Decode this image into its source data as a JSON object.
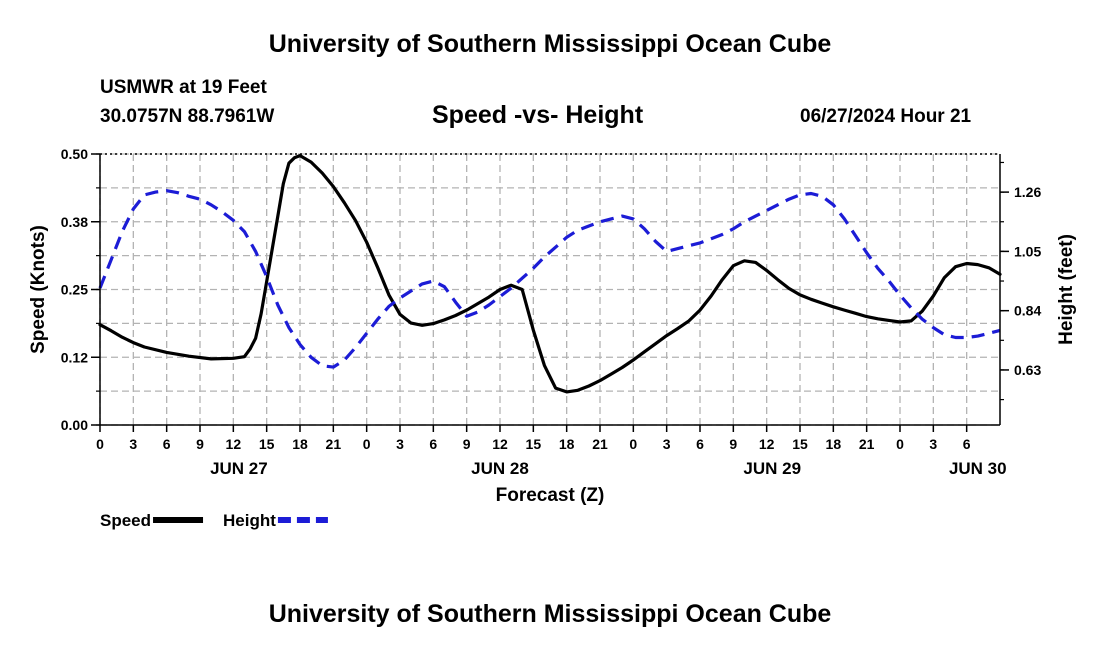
{
  "header": {
    "title": "University of Southern Mississippi Ocean Cube",
    "station": "USMWR at 19 Feet",
    "coords": "30.0757N  88.7961W",
    "subtitle": "Speed -vs- Height",
    "datetime": "06/27/2024 Hour 21",
    "title_bottom": "University of Southern Mississippi Ocean Cube"
  },
  "chart_data": {
    "type": "line",
    "title": "Speed -vs- Height",
    "xlabel": "Forecast (Z)",
    "ylabel": "Speed (Knots)",
    "y2label": "Height (feet)",
    "x_range_hours": [
      0,
      81
    ],
    "ylim": [
      0,
      0.5
    ],
    "y2lim": [
      0.435,
      1.395
    ],
    "grid": true,
    "y_ticks": [
      "0.00",
      "0.12",
      "0.25",
      "0.38",
      "0.50"
    ],
    "y_tick_values": [
      0,
      0.125,
      0.25,
      0.375,
      0.5
    ],
    "y2_ticks": [
      "0.63",
      "0.84",
      "1.05",
      "1.26"
    ],
    "y2_tick_values": [
      0.63,
      0.84,
      1.05,
      1.26
    ],
    "x_tick_labels": [
      "0",
      "3",
      "6",
      "9",
      "12",
      "15",
      "18",
      "21",
      "0",
      "3",
      "6",
      "9",
      "12",
      "15",
      "18",
      "21",
      "0",
      "3",
      "6",
      "9",
      "12",
      "15",
      "18",
      "21",
      "0",
      "3",
      "6"
    ],
    "day_labels": [
      {
        "label": "JUN 27",
        "hour": 12.5
      },
      {
        "label": "JUN 28",
        "hour": 36
      },
      {
        "label": "JUN 29",
        "hour": 60.5
      },
      {
        "label": "JUN 30",
        "hour": 79
      }
    ],
    "series": [
      {
        "name": "Speed",
        "color": "#000000",
        "dashed": false,
        "axis": "left",
        "x": [
          0,
          1,
          2,
          3,
          4,
          6,
          8,
          10,
          12,
          13,
          13.5,
          14,
          14.5,
          15,
          16,
          16.5,
          17,
          17.5,
          18,
          19,
          20,
          21,
          22,
          23,
          24,
          25,
          26,
          27,
          28,
          29,
          30,
          31,
          32,
          33,
          34,
          35,
          36,
          37,
          38,
          39,
          40,
          41,
          42,
          43,
          44,
          45,
          46,
          47,
          48,
          49,
          50,
          51,
          52,
          53,
          54,
          55,
          56,
          57,
          58,
          59,
          60,
          61,
          62,
          63,
          64,
          65,
          66,
          67,
          68,
          69,
          70,
          71,
          72,
          73,
          74,
          75,
          76,
          77,
          78,
          79,
          80,
          81
        ],
        "values": [
          0.185,
          0.174,
          0.162,
          0.152,
          0.144,
          0.134,
          0.127,
          0.122,
          0.123,
          0.126,
          0.14,
          0.16,
          0.205,
          0.265,
          0.385,
          0.445,
          0.483,
          0.493,
          0.497,
          0.485,
          0.465,
          0.44,
          0.41,
          0.377,
          0.337,
          0.29,
          0.24,
          0.204,
          0.188,
          0.184,
          0.187,
          0.194,
          0.202,
          0.212,
          0.224,
          0.236,
          0.25,
          0.258,
          0.25,
          0.175,
          0.11,
          0.068,
          0.061,
          0.064,
          0.072,
          0.082,
          0.094,
          0.106,
          0.12,
          0.135,
          0.15,
          0.165,
          0.178,
          0.192,
          0.212,
          0.238,
          0.268,
          0.294,
          0.303,
          0.3,
          0.285,
          0.268,
          0.252,
          0.24,
          0.232,
          0.225,
          0.218,
          0.212,
          0.206,
          0.2,
          0.196,
          0.193,
          0.19,
          0.192,
          0.21,
          0.238,
          0.272,
          0.292,
          0.298,
          0.296,
          0.29,
          0.278
        ]
      },
      {
        "name": "Height",
        "color": "#1c1cd6",
        "dashed": true,
        "axis": "right",
        "x": [
          0,
          1,
          2,
          3,
          4,
          5,
          6,
          7,
          8,
          9,
          10,
          11,
          12,
          13,
          14,
          15,
          16,
          17,
          18,
          19,
          20,
          21,
          22,
          23,
          24,
          25,
          26,
          27,
          28,
          29,
          30,
          31,
          32,
          33,
          34,
          35,
          36,
          37,
          38,
          39,
          40,
          41,
          42,
          43,
          44,
          45,
          46,
          47,
          48,
          49,
          50,
          51,
          52,
          53,
          54,
          55,
          56,
          57,
          58,
          59,
          60,
          61,
          62,
          63,
          64,
          65,
          66,
          67,
          68,
          69,
          70,
          71,
          72,
          73,
          74,
          75,
          76,
          77,
          78,
          79,
          80,
          81
        ],
        "values": [
          0.92,
          1.02,
          1.12,
          1.2,
          1.25,
          1.26,
          1.265,
          1.258,
          1.245,
          1.235,
          1.215,
          1.19,
          1.16,
          1.12,
          1.05,
          0.96,
          0.86,
          0.78,
          0.72,
          0.675,
          0.645,
          0.64,
          0.665,
          0.71,
          0.76,
          0.81,
          0.855,
          0.885,
          0.91,
          0.935,
          0.945,
          0.925,
          0.87,
          0.82,
          0.835,
          0.86,
          0.89,
          0.92,
          0.955,
          0.99,
          1.03,
          1.065,
          1.1,
          1.125,
          1.14,
          1.155,
          1.165,
          1.175,
          1.165,
          1.13,
          1.085,
          1.05,
          1.06,
          1.07,
          1.08,
          1.095,
          1.11,
          1.13,
          1.155,
          1.175,
          1.195,
          1.215,
          1.235,
          1.25,
          1.255,
          1.245,
          1.215,
          1.165,
          1.105,
          1.045,
          0.99,
          0.945,
          0.895,
          0.85,
          0.81,
          0.78,
          0.755,
          0.745,
          0.745,
          0.75,
          0.76,
          0.77
        ]
      }
    ],
    "legend": [
      {
        "label": "Speed",
        "color": "#000000",
        "dashed": false
      },
      {
        "label": "Height",
        "color": "#1c1cd6",
        "dashed": true
      }
    ]
  }
}
